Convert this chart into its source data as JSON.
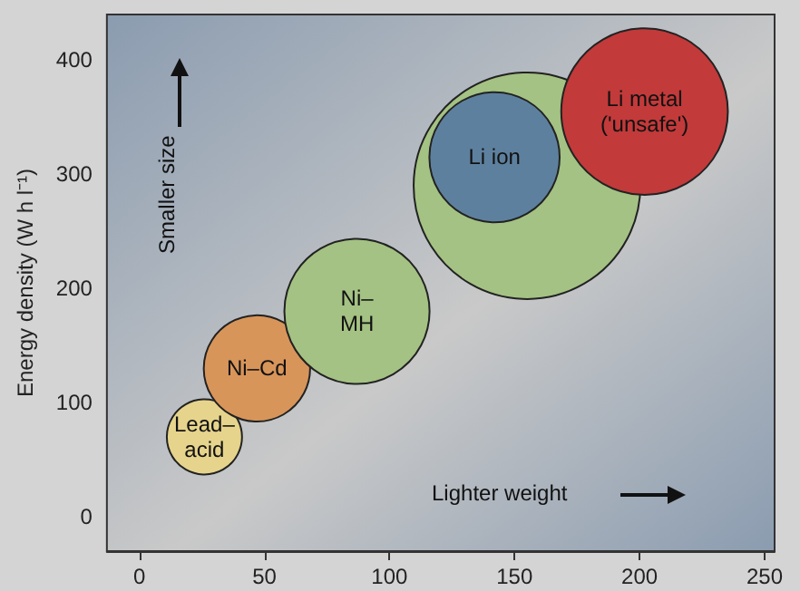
{
  "chart_data": {
    "type": "bubble",
    "ylabel": "Energy density (W h l⁻¹)",
    "annotations": [
      "Smaller size",
      "Lighter weight"
    ],
    "xlim": [
      -13,
      254
    ],
    "ylim": [
      -30,
      440
    ],
    "xticks": [
      0,
      50,
      100,
      150,
      200,
      250
    ],
    "yticks": [
      0,
      100,
      200,
      300,
      400
    ],
    "grid": false,
    "legend": false,
    "series": [
      {
        "name": "Lead–\nacid",
        "color": "#e6d48c",
        "x": [
          26
        ],
        "values": [
          70
        ],
        "sizes": [
          0.11
        ]
      },
      {
        "name": "Ni–Cd",
        "color": "#d8955a",
        "x": [
          47
        ],
        "values": [
          130
        ],
        "sizes": [
          0.22
        ]
      },
      {
        "name": "Ni–\nMH",
        "color": "#a4c283",
        "x": [
          87
        ],
        "values": [
          180
        ],
        "sizes": [
          0.41
        ]
      },
      {
        "color": "#a4c283",
        "x": [
          155
        ],
        "values": [
          290
        ],
        "sizes": [
          1
        ]
      },
      {
        "name": "Li ion",
        "color": "#5e809f",
        "x": [
          142
        ],
        "values": [
          315
        ],
        "sizes": [
          0.33
        ]
      },
      {
        "name": "Li metal\n('unsafe')",
        "color": "#c23a3a",
        "x": [
          202
        ],
        "values": [
          355
        ],
        "sizes": [
          0.54
        ]
      }
    ]
  }
}
